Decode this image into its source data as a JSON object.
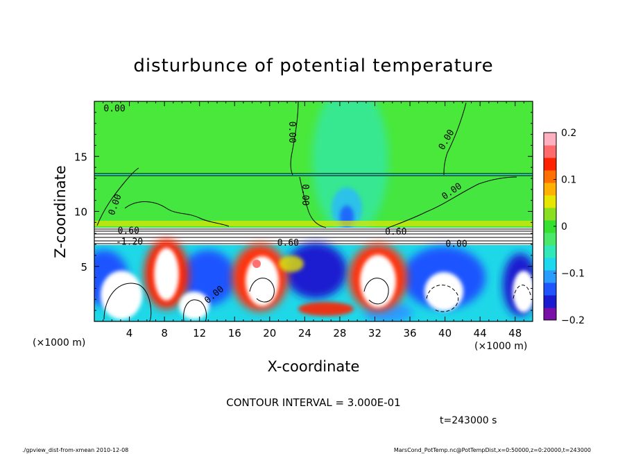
{
  "chart_data": {
    "type": "heatmap",
    "title": "disturbunce of potential temperature",
    "xlabel": "X-coordinate",
    "ylabel": "Z-coordinate",
    "x_unit": "(×1000 m)",
    "y_unit": "(×1000 m)",
    "xlim": [
      0,
      50
    ],
    "ylim": [
      0,
      20
    ],
    "x_ticks": [
      4,
      8,
      12,
      16,
      20,
      24,
      28,
      32,
      36,
      40,
      44,
      48
    ],
    "y_ticks": [
      5,
      10,
      15
    ],
    "colorbar": {
      "min": -0.2,
      "max": 0.2,
      "ticks": [
        {
          "value": 0.2,
          "label": "0.2"
        },
        {
          "value": 0.1,
          "label": "0.1"
        },
        {
          "value": 0,
          "label": "0"
        },
        {
          "value": -0.1,
          "label": "−0.1"
        },
        {
          "value": -0.2,
          "label": "−0.2"
        }
      ],
      "colors": [
        "#7a0fa8",
        "#1a1ad0",
        "#1f55ff",
        "#2a9bff",
        "#1ed8f0",
        "#30e8b8",
        "#4ae86a",
        "#35e030",
        "#8ae020",
        "#e6e600",
        "#ffb000",
        "#ff7000",
        "#ff2000",
        "#ff6a6a",
        "#ffb0c0"
      ]
    },
    "contour_labels": [
      {
        "text": "0.00",
        "x": 2.3,
        "z": 19.3
      },
      {
        "text": "0.00",
        "x": 22.5,
        "z": 17.2,
        "rotate": 90
      },
      {
        "text": "0.00",
        "x": 40.2,
        "z": 16.5,
        "rotate": -60
      },
      {
        "text": "0.00",
        "x": 2.4,
        "z": 10.6,
        "rotate": -70
      },
      {
        "text": "0.00",
        "x": 24.0,
        "z": 11.5,
        "rotate": 90
      },
      {
        "text": "0.00",
        "x": 40.8,
        "z": 11.8,
        "rotate": -35
      },
      {
        "text": "0.60",
        "x": 3.9,
        "z": 8.2
      },
      {
        "text": "-1.20",
        "x": 4.0,
        "z": 7.2
      },
      {
        "text": "0.60",
        "x": 22.1,
        "z": 7.1
      },
      {
        "text": "0.60",
        "x": 34.4,
        "z": 8.1
      },
      {
        "text": "0.00",
        "x": 41.3,
        "z": 7.0
      },
      {
        "text": "0.00",
        "x": 13.7,
        "z": 2.4,
        "rotate": -40
      }
    ],
    "contour_interval": "CONTOUR INTERVAL = 3.000E-01",
    "time": "t=243000 s"
  },
  "footer": {
    "left": "./gpview_dist-from-xmean  2010-12-08",
    "right": "MarsCond_PotTemp.nc@PotTempDist,x=0:50000,z=0:20000,t=243000"
  }
}
